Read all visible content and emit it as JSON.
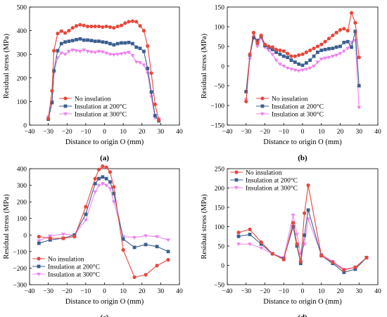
{
  "colors": {
    "no_insulation": "#e8473c",
    "insulation_200": "#3a5f8f",
    "insulation_300": "#ee82ee"
  },
  "chart_data": [
    {
      "type": "line",
      "panel_label": "(a)",
      "xlabel": "Distance to origin O (mm)",
      "ylabel": "Residual stress (MPa)",
      "xlim": [
        -40,
        40
      ],
      "ylim": [
        0,
        500
      ],
      "xticks": [
        "−40",
        "−30",
        "−20",
        "−10",
        "0",
        "10",
        "20",
        "30",
        "40"
      ],
      "yticks": [
        "0",
        "100",
        "200",
        "300",
        "400",
        "500"
      ],
      "legend_position": "bottom-center",
      "series": [
        {
          "name": "No insulation",
          "color_key": "no_insulation",
          "marker": "circle",
          "x": [
            -30,
            -28,
            -27,
            -25,
            -23,
            -21,
            -19,
            -17,
            -15,
            -13,
            -11,
            -9,
            -7,
            -5,
            -3,
            -1,
            1,
            3,
            5,
            7,
            9,
            11,
            13,
            15,
            17,
            19,
            21,
            23,
            25,
            27,
            29
          ],
          "y": [
            28,
            145,
            315,
            388,
            398,
            390,
            400,
            412,
            420,
            425,
            422,
            418,
            418,
            418,
            418,
            415,
            418,
            415,
            412,
            418,
            422,
            432,
            438,
            440,
            438,
            420,
            400,
            335,
            220,
            88,
            22
          ]
        },
        {
          "name": "Insulation at 200°C",
          "color_key": "insulation_200",
          "marker": "square",
          "x": [
            -30,
            -28,
            -27,
            -25,
            -23,
            -21,
            -19,
            -17,
            -15,
            -13,
            -11,
            -9,
            -7,
            -5,
            -3,
            -1,
            1,
            3,
            5,
            7,
            9,
            11,
            13,
            15,
            17,
            19,
            21,
            23,
            25,
            27,
            29
          ],
          "y": [
            25,
            95,
            230,
            315,
            345,
            352,
            355,
            358,
            362,
            365,
            360,
            360,
            358,
            355,
            355,
            352,
            350,
            345,
            340,
            345,
            348,
            348,
            350,
            345,
            330,
            325,
            312,
            240,
            140,
            40,
            18
          ]
        },
        {
          "name": "Insulation at 300°C",
          "color_key": "insulation_300",
          "marker": "triangle-down",
          "x": [
            -30,
            -28,
            -27,
            -25,
            -23,
            -21,
            -19,
            -17,
            -15,
            -13,
            -11,
            -9,
            -7,
            -5,
            -3,
            -1,
            1,
            3,
            5,
            7,
            9,
            11,
            13,
            15,
            17,
            19,
            21,
            23,
            25,
            27,
            29
          ],
          "y": [
            35,
            100,
            222,
            285,
            305,
            300,
            312,
            318,
            315,
            312,
            318,
            312,
            310,
            308,
            312,
            310,
            305,
            300,
            298,
            300,
            302,
            305,
            308,
            295,
            268,
            265,
            255,
            220,
            120,
            30,
            28
          ]
        }
      ]
    },
    {
      "type": "line",
      "panel_label": "(b)",
      "xlabel": "Distance to origin O (mm)",
      "ylabel": "Residual stress (MPa)",
      "xlim": [
        -40,
        40
      ],
      "ylim": [
        -150,
        150
      ],
      "xticks": [
        "−40",
        "−30",
        "−20",
        "−10",
        "0",
        "10",
        "20",
        "30",
        "40"
      ],
      "yticks": [
        "−150",
        "−100",
        "−50",
        "0",
        "50",
        "100",
        "150"
      ],
      "legend_position": "bottom-center",
      "series": [
        {
          "name": "No insulation",
          "color_key": "no_insulation",
          "marker": "circle",
          "x": [
            -30,
            -28,
            -26,
            -24,
            -22,
            -20,
            -18,
            -16,
            -14,
            -12,
            -10,
            -8,
            -6,
            -4,
            -2,
            0,
            2,
            4,
            6,
            8,
            10,
            12,
            14,
            16,
            18,
            20,
            22,
            24,
            26,
            28,
            30
          ],
          "y": [
            -90,
            30,
            85,
            58,
            78,
            55,
            50,
            48,
            42,
            40,
            38,
            32,
            25,
            25,
            28,
            30,
            35,
            40,
            45,
            50,
            55,
            62,
            70,
            78,
            85,
            92,
            95,
            90,
            135,
            110,
            22
          ]
        },
        {
          "name": "Insulation at 200°C",
          "color_key": "insulation_200",
          "marker": "square",
          "x": [
            -30,
            -28,
            -26,
            -24,
            -22,
            -20,
            -18,
            -16,
            -14,
            -12,
            -10,
            -8,
            -6,
            -4,
            -2,
            0,
            2,
            4,
            6,
            8,
            10,
            12,
            14,
            16,
            18,
            20,
            22,
            24,
            26,
            28,
            30
          ],
          "y": [
            -65,
            28,
            72,
            65,
            75,
            52,
            48,
            42,
            35,
            30,
            25,
            22,
            15,
            10,
            5,
            2,
            8,
            15,
            25,
            35,
            40,
            42,
            44,
            45,
            48,
            50,
            60,
            62,
            48,
            88,
            -50
          ]
        },
        {
          "name": "Insulation at 300°C",
          "color_key": "insulation_300",
          "marker": "triangle-down",
          "x": [
            -30,
            -28,
            -26,
            -24,
            -22,
            -20,
            -18,
            -16,
            -14,
            -12,
            -10,
            -8,
            -6,
            -4,
            -2,
            0,
            2,
            4,
            6,
            8,
            10,
            12,
            14,
            16,
            18,
            20,
            22,
            24,
            26,
            28,
            30
          ],
          "y": [
            -85,
            18,
            82,
            50,
            72,
            48,
            40,
            30,
            15,
            5,
            0,
            -5,
            -8,
            -10,
            -12,
            -10,
            -8,
            -5,
            0,
            10,
            18,
            20,
            22,
            25,
            28,
            32,
            38,
            45,
            60,
            65,
            -105
          ]
        }
      ]
    },
    {
      "type": "line",
      "panel_label": "(c)",
      "xlabel": "Distance to origin O (mm)",
      "ylabel": "Residual stress (MPa)",
      "xlim": [
        -40,
        40
      ],
      "ylim": [
        -300,
        400
      ],
      "xticks": [
        "−40",
        "−30",
        "−20",
        "−10",
        "0",
        "10",
        "20",
        "30",
        "40"
      ],
      "yticks": [
        "−300",
        "−200",
        "−100",
        "0",
        "100",
        "200",
        "300",
        "400"
      ],
      "legend_position": "bottom-left",
      "series": [
        {
          "name": "No insulation",
          "color_key": "no_insulation",
          "marker": "circle",
          "x": [
            -35,
            -29,
            -22,
            -16,
            -10,
            -5,
            -3,
            -1,
            1,
            3,
            5,
            10,
            16,
            22,
            28,
            34
          ],
          "y": [
            -10,
            -20,
            -20,
            -10,
            170,
            340,
            395,
            415,
            408,
            380,
            290,
            -90,
            -255,
            -240,
            -185,
            -150
          ]
        },
        {
          "name": "Insulation at 200°C",
          "color_key": "insulation_200",
          "marker": "square",
          "x": [
            -35,
            -29,
            -22,
            -16,
            -10,
            -5,
            -3,
            -1,
            1,
            3,
            5,
            10,
            16,
            22,
            28,
            34
          ],
          "y": [
            -50,
            -30,
            -20,
            0,
            125,
            310,
            340,
            350,
            340,
            320,
            250,
            -25,
            -75,
            -58,
            -70,
            -100
          ]
        },
        {
          "name": "Insulation at 300°C",
          "color_key": "insulation_300",
          "marker": "triangle-down",
          "x": [
            -35,
            -29,
            -22,
            -16,
            -10,
            -5,
            -3,
            -1,
            1,
            3,
            5,
            10,
            16,
            22,
            28,
            34
          ],
          "y": [
            -35,
            -5,
            5,
            0,
            90,
            260,
            300,
            310,
            300,
            280,
            200,
            -10,
            -15,
            -5,
            -10,
            -30
          ]
        }
      ]
    },
    {
      "type": "line",
      "panel_label": "(d)",
      "xlabel": "Distance to origin O (mm)",
      "ylabel": "Residual stress (MPa)",
      "xlim": [
        -40,
        40
      ],
      "ylim": [
        -50,
        250
      ],
      "xticks": [
        "−40",
        "−30",
        "−20",
        "−10",
        "0",
        "10",
        "20",
        "30",
        "40"
      ],
      "yticks": [
        "−50",
        "0",
        "50",
        "100",
        "150",
        "200",
        "250"
      ],
      "legend_position": "top-left",
      "series": [
        {
          "name": "No insulation",
          "color_key": "no_insulation",
          "marker": "circle",
          "x": [
            -34,
            -28,
            -22,
            -16,
            -10,
            -5,
            -3,
            -1,
            1,
            3,
            10,
            16,
            22,
            28,
            34
          ],
          "y": [
            85,
            93,
            60,
            30,
            15,
            110,
            55,
            10,
            135,
            207,
            25,
            8,
            -12,
            -5,
            20
          ]
        },
        {
          "name": "Insulation at 200°C",
          "color_key": "insulation_200",
          "marker": "square",
          "x": [
            -34,
            -28,
            -22,
            -16,
            -10,
            -5,
            -3,
            -1,
            1,
            3,
            10,
            16,
            22,
            28,
            34
          ],
          "y": [
            75,
            80,
            55,
            30,
            17,
            100,
            50,
            5,
            78,
            143,
            25,
            5,
            -18,
            -10,
            20
          ]
        },
        {
          "name": "Insulation at 300°C",
          "color_key": "insulation_300",
          "marker": "triangle-down",
          "x": [
            -34,
            -28,
            -22,
            -16,
            -10,
            -5,
            -3,
            -1,
            1,
            3,
            10,
            16,
            22,
            28,
            34
          ],
          "y": [
            55,
            55,
            45,
            30,
            20,
            130,
            80,
            30,
            55,
            120,
            28,
            10,
            -10,
            -5,
            20
          ]
        }
      ]
    }
  ]
}
